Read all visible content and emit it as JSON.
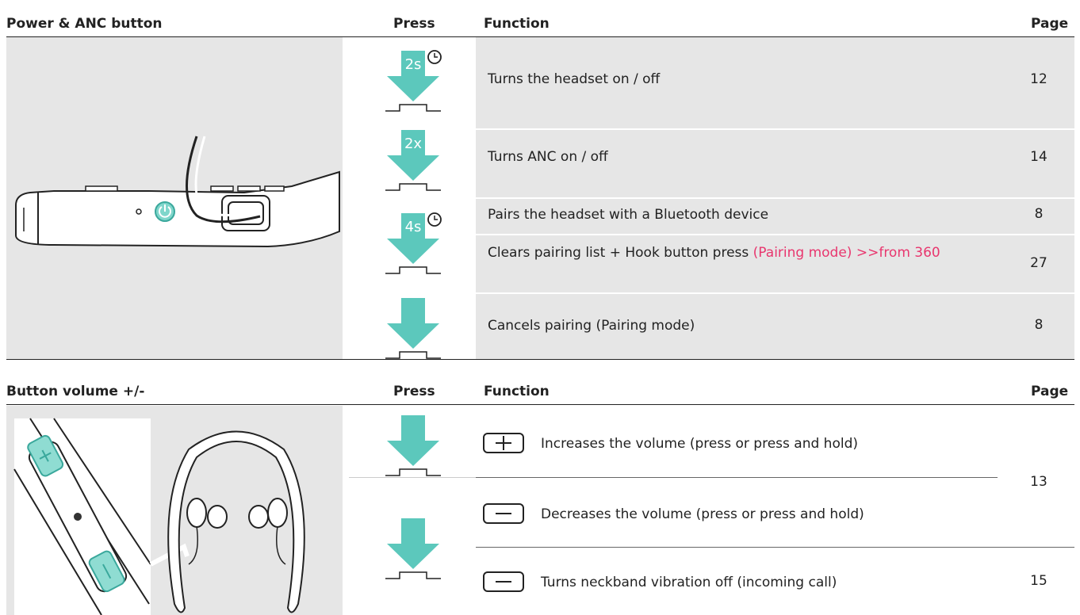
{
  "sections": [
    {
      "header": {
        "title": "Power & ANC button",
        "press": "Press",
        "function": "Function",
        "page": "Page"
      },
      "rows": [
        {
          "press_label": "2s",
          "function": "Turns the headset on / off",
          "page": 12
        },
        {
          "press_label": "2x",
          "function": "Turns ANC on / off",
          "page": 14
        },
        {
          "press_label": "4s",
          "function": "Pairs the headset with a Bluetooth device",
          "page": 8
        },
        {
          "function": "Clears pairing list + Hook button press",
          "function_note": "(Pairing mode) >>from 360",
          "page": 27
        },
        {
          "function": "Cancels pairing (Pairing mode)",
          "page": 8
        }
      ]
    },
    {
      "header": {
        "title": "Button volume +/-",
        "press": "Press",
        "function": "Function",
        "page": "Page"
      },
      "rows": [
        {
          "function": "Increases the volume (press or press and hold)",
          "page": 13
        },
        {
          "function": "Decreases the volume (press or press and hold)"
        },
        {
          "function": "Turns neckband vibration off (incoming call)",
          "page": 15
        }
      ]
    }
  ]
}
